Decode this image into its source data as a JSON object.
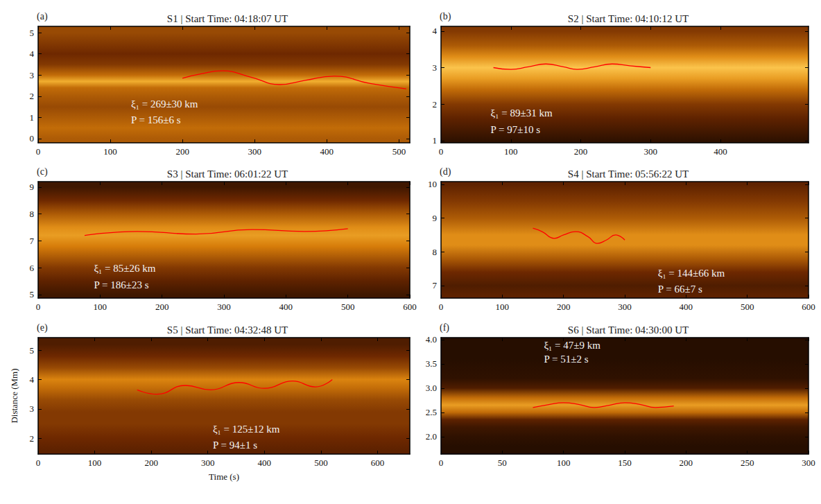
{
  "chart_data": [
    {
      "type": "line",
      "title": "S1 | Start Time: 04:18:07 UT",
      "panel_label": "(a)",
      "annotations": [
        "ξ₁ = 269±30 km",
        "P = 156±6 s"
      ],
      "x": [
        200,
        225,
        255,
        295,
        335,
        370,
        410,
        460,
        510
      ],
      "values": [
        2.85,
        3.05,
        3.2,
        2.9,
        2.55,
        2.75,
        2.95,
        2.6,
        2.35
      ],
      "color": "#ff0000",
      "line_style": "solid",
      "xlim": [
        0,
        515
      ],
      "ylim": [
        -0.2,
        5.3
      ],
      "xticks": [
        0,
        100,
        200,
        300,
        400,
        500
      ],
      "yticks": [
        0,
        1,
        2,
        3,
        4,
        5
      ],
      "grid": false,
      "background": {
        "y": [
          5.0,
          4.5,
          4.0,
          3.5,
          3.0,
          2.7,
          2.4,
          2.0,
          1.5,
          1.0,
          0.5,
          0.0
        ],
        "intensity": [
          0.45,
          0.4,
          0.35,
          0.4,
          0.55,
          0.75,
          0.55,
          0.5,
          0.45,
          0.5,
          0.55,
          0.5
        ],
        "range": [
          0,
          1
        ]
      }
    },
    {
      "type": "line",
      "title": "S2 | Start Time: 04:10:12 UT",
      "panel_label": "(b)",
      "annotations": [
        "ξ₁ = 89±31 km",
        "P = 97±10 s"
      ],
      "x": [
        75,
        100,
        125,
        150,
        175,
        195,
        220,
        245,
        270,
        300
      ],
      "values": [
        3.0,
        2.95,
        3.02,
        3.1,
        3.02,
        2.95,
        3.02,
        3.1,
        3.05,
        3.0
      ],
      "color": "#ff0000",
      "line_style": "solid",
      "xlim": [
        0,
        526
      ],
      "ylim": [
        0.94,
        4.13
      ],
      "xticks": [
        0,
        100,
        200,
        300,
        400
      ],
      "yticks": [
        1,
        2,
        3,
        4
      ],
      "grid": false,
      "background": {
        "y": [
          4.0,
          3.6,
          3.3,
          3.0,
          2.7,
          2.4,
          2.0,
          1.6,
          1.2,
          1.0
        ],
        "intensity": [
          0.4,
          0.5,
          0.65,
          0.82,
          0.7,
          0.55,
          0.4,
          0.3,
          0.2,
          0.15
        ],
        "range": [
          0,
          1
        ]
      }
    },
    {
      "type": "line",
      "title": "S3 | Start Time: 06:01:22 UT",
      "panel_label": "(c)",
      "annotations": [
        "ξ₁ = 85±26 km",
        "P = 186±23 s"
      ],
      "x": [
        75,
        160,
        255,
        345,
        430,
        500
      ],
      "values": [
        7.2,
        7.35,
        7.25,
        7.42,
        7.35,
        7.45
      ],
      "color": "#ff0000",
      "line_style": "solid",
      "xlim": [
        0,
        600
      ],
      "ylim": [
        4.87,
        9.2
      ],
      "xticks": [
        0,
        100,
        200,
        300,
        400,
        500,
        600
      ],
      "yticks": [
        5,
        6,
        7,
        8,
        9
      ],
      "grid": false,
      "background": {
        "y": [
          9.0,
          8.5,
          8.0,
          7.5,
          7.2,
          6.8,
          6.4,
          6.0,
          5.5,
          5.0
        ],
        "intensity": [
          0.2,
          0.35,
          0.5,
          0.65,
          0.7,
          0.6,
          0.5,
          0.4,
          0.3,
          0.2
        ],
        "range": [
          0,
          1
        ]
      }
    },
    {
      "type": "line",
      "title": "S4 | Start Time: 05:56:22 UT",
      "panel_label": "(d)",
      "annotations": [
        "ξ₁ = 144±66 km",
        "P = 66±7 s"
      ],
      "x": [
        150,
        165,
        185,
        200,
        220,
        240,
        255,
        270,
        285,
        300
      ],
      "values": [
        8.7,
        8.6,
        8.4,
        8.5,
        8.6,
        8.45,
        8.25,
        8.35,
        8.5,
        8.35
      ],
      "color": "#ff0000",
      "line_style": "solid",
      "xlim": [
        0,
        600
      ],
      "ylim": [
        6.63,
        10.08
      ],
      "xticks": [
        0,
        100,
        200,
        300,
        400,
        500,
        600
      ],
      "yticks": [
        7,
        8,
        9,
        10
      ],
      "grid": false,
      "background": {
        "y": [
          10.0,
          9.5,
          9.0,
          8.5,
          8.2,
          7.8,
          7.4,
          7.0,
          6.7
        ],
        "intensity": [
          0.3,
          0.4,
          0.5,
          0.65,
          0.65,
          0.5,
          0.35,
          0.25,
          0.3
        ],
        "range": [
          0,
          1
        ]
      }
    },
    {
      "type": "line",
      "title": "S5 | Start Time: 04:32:48 UT",
      "panel_label": "(e)",
      "annotations": [
        "ξ₁ = 125±12 km",
        "P = 94±1 s"
      ],
      "xlabel": "Time (s)",
      "ylabel": "Distance (Mm)",
      "x": [
        175,
        210,
        260,
        305,
        355,
        400,
        450,
        490,
        520
      ],
      "values": [
        3.65,
        3.5,
        3.8,
        3.65,
        3.9,
        3.7,
        3.95,
        3.75,
        4.0
      ],
      "color": "#ff0000",
      "line_style": "solid",
      "xlim": [
        0,
        657
      ],
      "ylim": [
        1.46,
        5.43
      ],
      "xticks": [
        0,
        100,
        200,
        300,
        400,
        500,
        600
      ],
      "yticks": [
        2,
        3,
        4,
        5
      ],
      "grid": false,
      "background": {
        "y": [
          5.2,
          4.8,
          4.4,
          4.0,
          3.7,
          3.3,
          2.9,
          2.5,
          2.0,
          1.6
        ],
        "intensity": [
          0.25,
          0.35,
          0.45,
          0.62,
          0.55,
          0.45,
          0.4,
          0.4,
          0.35,
          0.3
        ],
        "range": [
          0,
          1
        ]
      }
    },
    {
      "type": "line",
      "title": "S6 | Start Time: 04:30:00 UT",
      "panel_label": "(f)",
      "annotations": [
        "ξ₁ = 47±9 km",
        "P = 51±2 s"
      ],
      "x": [
        75,
        88,
        100,
        113,
        125,
        138,
        150,
        163,
        175,
        190
      ],
      "values": [
        2.6,
        2.66,
        2.7,
        2.66,
        2.6,
        2.65,
        2.7,
        2.66,
        2.6,
        2.63
      ],
      "color": "#ff0000",
      "line_style": "solid",
      "xlim": [
        0,
        300
      ],
      "ylim": [
        1.64,
        4.04
      ],
      "xticks": [
        0,
        50,
        100,
        150,
        200,
        250,
        300
      ],
      "yticks": [
        {
          "value": 2,
          "label": "2.0"
        },
        {
          "value": 2.5,
          "label": "2.5"
        },
        {
          "value": 3,
          "label": "3.0"
        },
        {
          "value": 3.5,
          "label": "3.5"
        },
        {
          "value": 4,
          "label": "4.0"
        }
      ],
      "grid": false,
      "background": {
        "y": [
          4.0,
          3.6,
          3.2,
          3.0,
          2.8,
          2.65,
          2.5,
          2.35,
          2.2,
          2.0,
          1.8
        ],
        "intensity": [
          0.12,
          0.12,
          0.15,
          0.25,
          0.55,
          0.7,
          0.55,
          0.3,
          0.2,
          0.15,
          0.12
        ],
        "range": [
          0,
          1
        ]
      }
    }
  ]
}
